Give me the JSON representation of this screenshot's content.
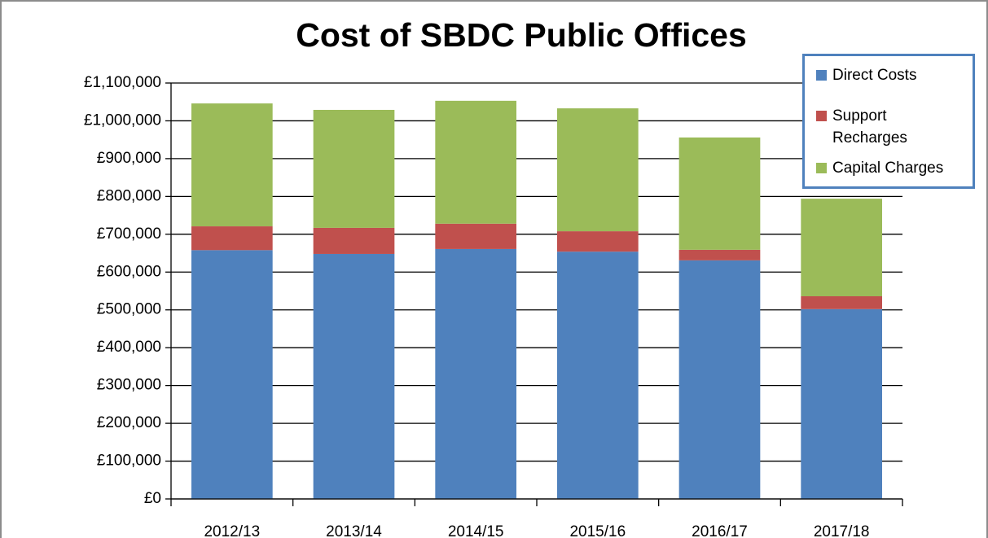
{
  "chart_data": {
    "type": "stacked-bar",
    "title": "Cost of SBDC Public Offices",
    "categories": [
      "2012/13",
      "2013/14",
      "2014/15",
      "2015/16",
      "2016/17",
      "2017/18"
    ],
    "series": [
      {
        "name": "Direct Costs",
        "color": "#4f81bd",
        "values": [
          658000,
          648000,
          661000,
          654000,
          631000,
          502000
        ]
      },
      {
        "name": "Support Recharges",
        "color": "#c0504d",
        "values": [
          63000,
          69000,
          67000,
          54000,
          28000,
          34000
        ]
      },
      {
        "name": "Capital Charges",
        "color": "#9bbb59",
        "values": [
          325000,
          312000,
          325000,
          325000,
          297000,
          258000
        ]
      }
    ],
    "ylim": [
      0,
      1100000
    ],
    "yticks": [
      {
        "value": 0,
        "label": "£0"
      },
      {
        "value": 100000,
        "label": "£100,000"
      },
      {
        "value": 200000,
        "label": "£200,000"
      },
      {
        "value": 300000,
        "label": "£300,000"
      },
      {
        "value": 400000,
        "label": "£400,000"
      },
      {
        "value": 500000,
        "label": "£500,000"
      },
      {
        "value": 600000,
        "label": "£600,000"
      },
      {
        "value": 700000,
        "label": "£700,000"
      },
      {
        "value": 800000,
        "label": "£800,000"
      },
      {
        "value": 900000,
        "label": "£900,000"
      },
      {
        "value": 1000000,
        "label": "£1,000,000"
      },
      {
        "value": 1100000,
        "label": "£1,100,000"
      }
    ],
    "grid": true,
    "legend": "top-right"
  }
}
